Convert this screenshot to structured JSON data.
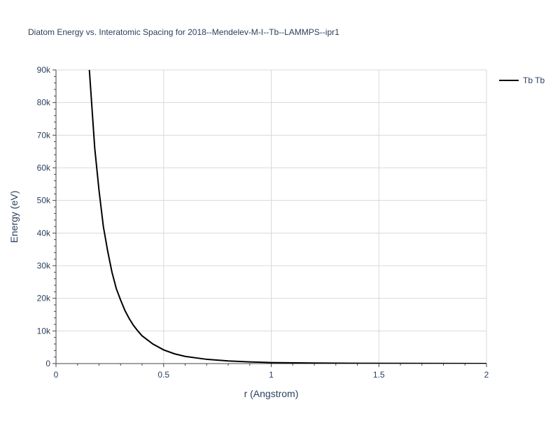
{
  "chart_data": {
    "type": "line",
    "title": "Diatom Energy vs. Interatomic Spacing for 2018--Mendelev-M-I--Tb--LAMMPS--ipr1",
    "xlabel": "r (Angstrom)",
    "ylabel": "Energy (eV)",
    "xlim": [
      0,
      2
    ],
    "ylim": [
      0,
      90000
    ],
    "x_ticks": [
      0,
      0.5,
      1,
      1.5,
      2
    ],
    "x_tick_labels": [
      "0",
      "0.5",
      "1",
      "1.5",
      "2"
    ],
    "y_ticks": [
      0,
      10000,
      20000,
      30000,
      40000,
      50000,
      60000,
      70000,
      80000,
      90000
    ],
    "y_tick_labels": [
      "0",
      "10k",
      "20k",
      "30k",
      "40k",
      "50k",
      "60k",
      "70k",
      "80k",
      "90k"
    ],
    "grid": true,
    "legend_position": "top-right",
    "series": [
      {
        "name": "Tb Tb",
        "color": "#000000",
        "x": [
          0.155,
          0.18,
          0.2,
          0.22,
          0.24,
          0.26,
          0.28,
          0.3,
          0.32,
          0.34,
          0.36,
          0.38,
          0.4,
          0.45,
          0.5,
          0.55,
          0.6,
          0.7,
          0.8,
          0.9,
          1.0,
          1.2,
          1.4,
          1.6,
          1.8,
          2.0
        ],
        "y": [
          90000,
          66000,
          53000,
          42000,
          34500,
          28000,
          23000,
          19500,
          16300,
          13800,
          11700,
          10000,
          8500,
          6000,
          4200,
          3000,
          2200,
          1300,
          800,
          500,
          300,
          150,
          80,
          40,
          20,
          10
        ]
      }
    ]
  }
}
